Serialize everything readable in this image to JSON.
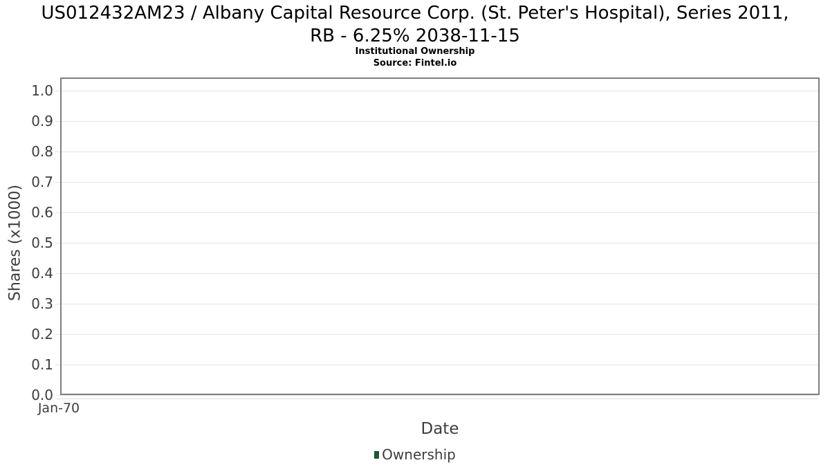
{
  "chart_data": {
    "type": "line",
    "title": "US012432AM23 / Albany Capital Resource Corp. (St. Peter's Hospital), Series 2011, RB - 6.25% 2038-11-15",
    "title_lines": [
      "US012432AM23 / Albany Capital Resource Corp. (St. Peter's Hospital), Series 2011,",
      "RB - 6.25% 2038-11-15"
    ],
    "subtitle": "Institutional Ownership",
    "source": "Source: Fintel.io",
    "xlabel": "Date",
    "ylabel": "Shares (x1000)",
    "x_ticks": [
      "Jan-70"
    ],
    "y_ticks": [
      "1.0",
      "0.9",
      "0.8",
      "0.7",
      "0.6",
      "0.5",
      "0.4",
      "0.3",
      "0.2",
      "0.1",
      "0.0"
    ],
    "ylim": [
      0.0,
      1.0
    ],
    "grid": true,
    "legend": {
      "position": "bottom-center",
      "entries": [
        {
          "label": "Ownership",
          "color": "#1e5631"
        }
      ]
    },
    "series": [
      {
        "name": "Ownership",
        "x": [],
        "y": []
      }
    ],
    "colors": {
      "grid_line": "#e4e4e4",
      "plot_border": "#7e7e7e",
      "tick_text": "#3d3d3d",
      "title_text": "#000000",
      "legend_swatch": "#1e5631"
    }
  }
}
